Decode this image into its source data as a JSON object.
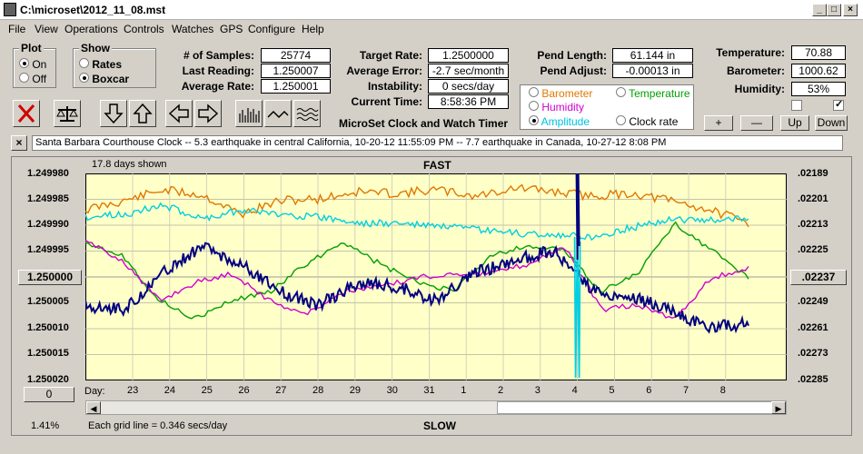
{
  "window": {
    "title": "C:\\microset\\2012_11_08.mst"
  },
  "menu": [
    "File",
    "View",
    "Operations",
    "Controls",
    "Watches",
    "GPS",
    "Configure",
    "Help"
  ],
  "plot": {
    "title": "Plot",
    "on": "On",
    "off": "Off",
    "selected": "On"
  },
  "show": {
    "title": "Show",
    "rates": "Rates",
    "boxcar": "Boxcar",
    "selected": "Boxcar"
  },
  "stats": {
    "samples_label": "# of Samples:",
    "samples": "25774",
    "last_label": "Last Reading:",
    "last": "1.250007",
    "avg_rate_label": "Average Rate:",
    "avg_rate": "1.250001"
  },
  "target": {
    "target_label": "Target Rate:",
    "target": "1.2500000",
    "avg_err_label": "Average Error:",
    "avg_err": "-2.7 sec/month",
    "instab_label": "Instability:",
    "instab": "0 secs/day",
    "time_label": "Current Time:",
    "time": "8:58:36 PM",
    "app_name": "MicroSet Clock and Watch Timer"
  },
  "pend": {
    "len_label": "Pend Length:",
    "len": "61.144 in",
    "adj_label": "Pend Adjust:",
    "adj": "-0.00013 in"
  },
  "env": {
    "temp_label": "Temperature:",
    "temp": "70.88",
    "baro_label": "Barometer:",
    "baro": "1000.62",
    "hum_label": "Humidity:",
    "hum": "53%"
  },
  "overlays": {
    "barometer": "Barometer",
    "temperature": "Temperature",
    "humidity": "Humidity",
    "amplitude": "Amplitude",
    "clock_rate": "Clock rate",
    "selected": "Amplitude",
    "colors": {
      "barometer": "#e07800",
      "temperature": "#00a000",
      "humidity": "#d000d0",
      "amplitude": "#00d0e0",
      "rate": "#000080"
    }
  },
  "scale_buttons": {
    "plus": "+",
    "minus": "—",
    "up": "Up",
    "down": "Down"
  },
  "info_bar": "Santa Barbara Courthouse Clock  --  5.3 earthquake in central California, 10-20-12 11:55:09 PM  --  7.7 earthquake in Canada, 10-27-12 8:08 PM",
  "plot_area": {
    "days_shown": "17.8 days shown",
    "fast": "FAST",
    "slow": "SLOW",
    "grid_note": "Each grid line = 0.346 secs/day",
    "percent": "1.41%",
    "center_left": "1.250000",
    "center_right": ".02237",
    "zero_btn": "0",
    "day_label": "Day:",
    "left_ticks": [
      "1.249980",
      "1.249985",
      "1.249990",
      "1.249995",
      "1.250000",
      "1.250005",
      "1.250010",
      "1.250015",
      "1.250020"
    ],
    "right_ticks": [
      ".02189",
      ".02201",
      ".02213",
      ".02225",
      ".02237",
      ".02249",
      ".02261",
      ".02273",
      ".02285"
    ],
    "days": [
      "23",
      "24",
      "25",
      "26",
      "27",
      "28",
      "29",
      "30",
      "31",
      "1",
      "2",
      "3",
      "4",
      "5",
      "6",
      "7",
      "8"
    ]
  }
}
